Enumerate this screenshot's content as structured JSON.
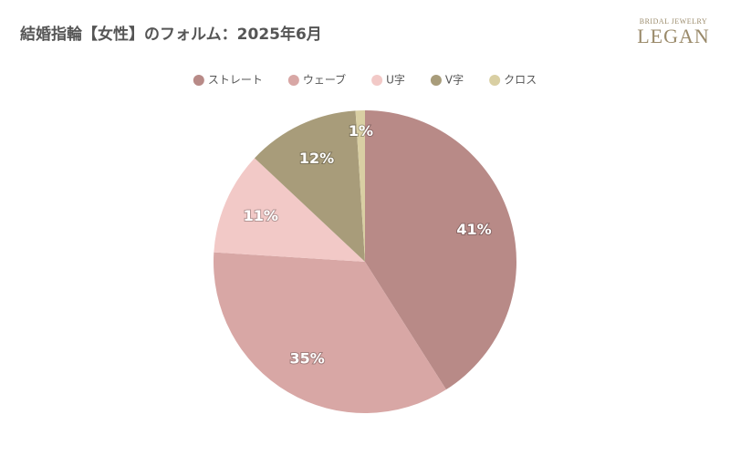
{
  "chart_data": {
    "type": "pie",
    "title": "結婚指輪【女性】のフォルム：2025年6月",
    "categories": [
      "ストレート",
      "ウェーブ",
      "U字",
      "V字",
      "クロス"
    ],
    "values": [
      41,
      35,
      11,
      12,
      1
    ],
    "value_labels": [
      "41%",
      "35%",
      "11%",
      "12%",
      "1%"
    ],
    "colors": [
      "#b88a87",
      "#d8a7a5",
      "#f2c9c7",
      "#a89c7a",
      "#d9cfa3"
    ],
    "legend": "top"
  },
  "logo": {
    "tagline": "BRIDAL JEWELRY",
    "name": "LEGAN"
  }
}
